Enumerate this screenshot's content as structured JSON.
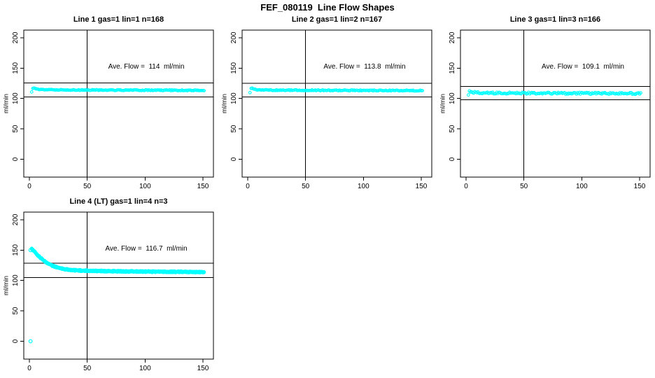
{
  "page": {
    "title": "FEF_080119  Line Flow Shapes"
  },
  "chart_data": [
    {
      "type": "scatter",
      "title": "Line 1 gas=1 lin=1 n=168",
      "annotation": "Ave. Flow =  114  ml/min",
      "ave_flow": 114,
      "n_label": 168,
      "ylabel": "ml/min",
      "xlabel": "",
      "xlim": [
        0,
        150
      ],
      "ylim": [
        0,
        200
      ],
      "x_ticks": [
        0,
        50,
        100,
        150
      ],
      "y_ticks": [
        0,
        50,
        100,
        150,
        200
      ],
      "vline_x": 50,
      "hlines": [
        125.4,
        102.6
      ],
      "point_color": "#00FFFF",
      "series": {
        "x_start": 2,
        "x_end": 151,
        "n": 166,
        "jitter": 0.7,
        "layer_offsets": [
          0
        ],
        "profile": [
          [
            2,
            110.5
          ],
          [
            2.6,
            116.8
          ],
          [
            3.5,
            117.2
          ],
          [
            5,
            116.2
          ],
          [
            8,
            115.1
          ],
          [
            14,
            114.5
          ],
          [
            30,
            114.1
          ],
          [
            60,
            113.9
          ],
          [
            100,
            113.7
          ],
          [
            151,
            113.2
          ]
        ]
      },
      "extra_points": []
    },
    {
      "type": "scatter",
      "title": "Line 2 gas=1 lin=2 n=167",
      "annotation": "Ave. Flow =  113.8  ml/min",
      "ave_flow": 113.8,
      "n_label": 167,
      "ylabel": "ml/min",
      "xlabel": "",
      "xlim": [
        0,
        150
      ],
      "ylim": [
        0,
        200
      ],
      "x_ticks": [
        0,
        50,
        100,
        150
      ],
      "y_ticks": [
        0,
        50,
        100,
        150,
        200
      ],
      "vline_x": 50,
      "hlines": [
        125.2,
        102.4
      ],
      "point_color": "#00FFFF",
      "series": {
        "x_start": 2,
        "x_end": 151,
        "n": 165,
        "jitter": 0.7,
        "layer_offsets": [
          0
        ],
        "profile": [
          [
            2,
            110
          ],
          [
            2.6,
            116.2
          ],
          [
            3.5,
            116.6
          ],
          [
            5,
            115.6
          ],
          [
            8,
            114.6
          ],
          [
            14,
            113.9
          ],
          [
            30,
            113.6
          ],
          [
            60,
            113.5
          ],
          [
            100,
            113.3
          ],
          [
            151,
            113.0
          ]
        ]
      },
      "extra_points": []
    },
    {
      "type": "scatter",
      "title": "Line 3 gas=1 lin=3 n=166",
      "annotation": "Ave. Flow =  109.1  ml/min",
      "ave_flow": 109.1,
      "n_label": 166,
      "ylabel": "ml/min",
      "xlabel": "",
      "xlim": [
        0,
        150
      ],
      "ylim": [
        0,
        200
      ],
      "x_ticks": [
        0,
        50,
        100,
        150
      ],
      "y_ticks": [
        0,
        50,
        100,
        150,
        200
      ],
      "vline_x": 50,
      "hlines": [
        120.0,
        98.2
      ],
      "point_color": "#00FFFF",
      "series": {
        "x_start": 2,
        "x_end": 151,
        "n": 164,
        "jitter": 1.5,
        "layer_offsets": [
          0
        ],
        "profile": [
          [
            2,
            104.5
          ],
          [
            2.6,
            111.5
          ],
          [
            3.5,
            112.2
          ],
          [
            5,
            111.0
          ],
          [
            8,
            109.8
          ],
          [
            14,
            109.2
          ],
          [
            30,
            108.9
          ],
          [
            60,
            108.7
          ],
          [
            100,
            108.5
          ],
          [
            151,
            108.1
          ]
        ]
      },
      "extra_points": []
    },
    {
      "type": "scatter",
      "title": "Line 4 (LT) gas=1 lin=4 n=3",
      "annotation": "Ave. Flow =  116.7  ml/min",
      "ave_flow": 116.7,
      "n_label": 3,
      "ylabel": "ml/min",
      "xlabel": "",
      "xlim": [
        0,
        150
      ],
      "ylim": [
        0,
        200
      ],
      "x_ticks": [
        0,
        50,
        100,
        150
      ],
      "y_ticks": [
        0,
        50,
        100,
        150,
        200
      ],
      "vline_x": 50,
      "hlines": [
        128.4,
        105.0
      ],
      "point_color": "#00FFFF",
      "series": {
        "x_start": 2,
        "x_end": 151,
        "n": 160,
        "jitter": 0.5,
        "layer_offsets": [
          -0.9,
          0,
          0.9
        ],
        "profile": [
          [
            2,
            152
          ],
          [
            4,
            148.5
          ],
          [
            6,
            144
          ],
          [
            8,
            140
          ],
          [
            10,
            136.5
          ],
          [
            13,
            132
          ],
          [
            16,
            128.3
          ],
          [
            20,
            124.3
          ],
          [
            24,
            121.5
          ],
          [
            28,
            119.5
          ],
          [
            32,
            118.2
          ],
          [
            38,
            117
          ],
          [
            45,
            116.3
          ],
          [
            55,
            115.7
          ],
          [
            70,
            115.3
          ],
          [
            90,
            114.8
          ],
          [
            120,
            114.3
          ],
          [
            151,
            113.8
          ]
        ]
      },
      "extra_points": [
        [
          1,
          150
        ],
        [
          1,
          0
        ]
      ]
    }
  ]
}
